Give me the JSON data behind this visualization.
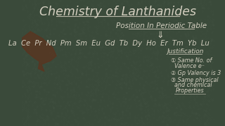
{
  "title": "Chemistry of Lanthanides",
  "subtitle": "Position In Periodic Table",
  "elements": "La  Ce  Pr  Nd  Pm  Sm  Eu  Gd  Tb  Dy  Ho  Er  Tm  Yb  Lu",
  "arrow": "⇓",
  "justification_label": "Justification",
  "bullet1": "① Same No. of",
  "bullet1b": "Valence e⁻",
  "bullet2": "② Gp Valency is 3",
  "bullet3": "③ Same physical",
  "bullet3b": "and chemical",
  "bullet3c": "Properties",
  "bg_color": "#3a4a3a",
  "chalk_color": "#d4cfc0",
  "hand_color": "#5a3520"
}
